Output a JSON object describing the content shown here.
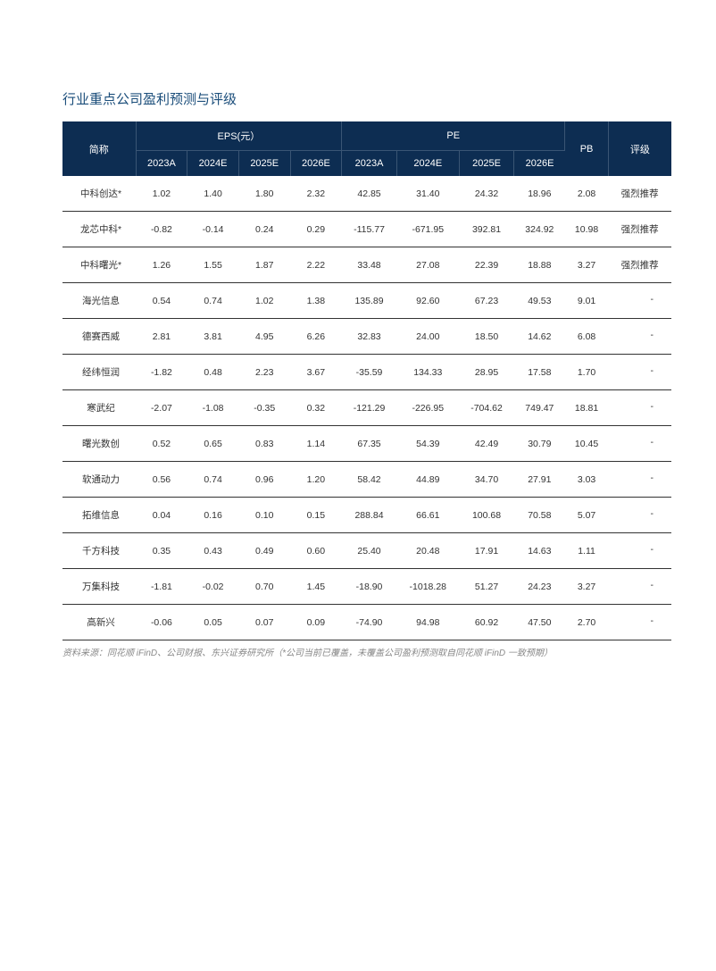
{
  "title": "行业重点公司盈利预测与评级",
  "table": {
    "header": {
      "company": "简称",
      "eps": "EPS(元）",
      "pe": "PE",
      "pb": "PB",
      "rating": "评级",
      "years": [
        "2023A",
        "2024E",
        "2025E",
        "2026E"
      ]
    },
    "rows": [
      {
        "name": "中科创达*",
        "eps": [
          "1.02",
          "1.40",
          "1.80",
          "2.32"
        ],
        "pe": [
          "42.85",
          "31.40",
          "24.32",
          "18.96"
        ],
        "pb": "2.08",
        "rating": "强烈推荐"
      },
      {
        "name": "龙芯中科*",
        "eps": [
          "-0.82",
          "-0.14",
          "0.24",
          "0.29"
        ],
        "pe": [
          "-115.77",
          "-671.95",
          "392.81",
          "324.92"
        ],
        "pb": "10.98",
        "rating": "强烈推荐"
      },
      {
        "name": "中科曙光*",
        "eps": [
          "1.26",
          "1.55",
          "1.87",
          "2.22"
        ],
        "pe": [
          "33.48",
          "27.08",
          "22.39",
          "18.88"
        ],
        "pb": "3.27",
        "rating": "强烈推荐"
      },
      {
        "name": "海光信息",
        "eps": [
          "0.54",
          "0.74",
          "1.02",
          "1.38"
        ],
        "pe": [
          "135.89",
          "92.60",
          "67.23",
          "49.53"
        ],
        "pb": "9.01",
        "rating": "-"
      },
      {
        "name": "德赛西威",
        "eps": [
          "2.81",
          "3.81",
          "4.95",
          "6.26"
        ],
        "pe": [
          "32.83",
          "24.00",
          "18.50",
          "14.62"
        ],
        "pb": "6.08",
        "rating": "-"
      },
      {
        "name": "经纬恒润",
        "eps": [
          "-1.82",
          "0.48",
          "2.23",
          "3.67"
        ],
        "pe": [
          "-35.59",
          "134.33",
          "28.95",
          "17.58"
        ],
        "pb": "1.70",
        "rating": "-"
      },
      {
        "name": "寒武纪",
        "eps": [
          "-2.07",
          "-1.08",
          "-0.35",
          "0.32"
        ],
        "pe": [
          "-121.29",
          "-226.95",
          "-704.62",
          "749.47"
        ],
        "pb": "18.81",
        "rating": "-"
      },
      {
        "name": "曙光数创",
        "eps": [
          "0.52",
          "0.65",
          "0.83",
          "1.14"
        ],
        "pe": [
          "67.35",
          "54.39",
          "42.49",
          "30.79"
        ],
        "pb": "10.45",
        "rating": "-"
      },
      {
        "name": "软通动力",
        "eps": [
          "0.56",
          "0.74",
          "0.96",
          "1.20"
        ],
        "pe": [
          "58.42",
          "44.89",
          "34.70",
          "27.91"
        ],
        "pb": "3.03",
        "rating": "-"
      },
      {
        "name": "拓维信息",
        "eps": [
          "0.04",
          "0.16",
          "0.10",
          "0.15"
        ],
        "pe": [
          "288.84",
          "66.61",
          "100.68",
          "70.58"
        ],
        "pb": "5.07",
        "rating": "-"
      },
      {
        "name": "千方科技",
        "eps": [
          "0.35",
          "0.43",
          "0.49",
          "0.60"
        ],
        "pe": [
          "25.40",
          "20.48",
          "17.91",
          "14.63"
        ],
        "pb": "1.11",
        "rating": "-"
      },
      {
        "name": "万集科技",
        "eps": [
          "-1.81",
          "-0.02",
          "0.70",
          "1.45"
        ],
        "pe": [
          "-18.90",
          "-1018.28",
          "51.27",
          "24.23"
        ],
        "pb": "3.27",
        "rating": "-"
      },
      {
        "name": "高新兴",
        "eps": [
          "-0.06",
          "0.05",
          "0.07",
          "0.09"
        ],
        "pe": [
          "-74.90",
          "94.98",
          "60.92",
          "47.50"
        ],
        "pb": "2.70",
        "rating": "-"
      }
    ]
  },
  "source_note": "资料来源：同花顺 iFinD、公司财报、东兴证券研究所（*公司当前已覆盖，未覆盖公司盈利预测取自同花顺 iFinD 一致预期）",
  "colors": {
    "title_color": "#1a4d7a",
    "header_bg": "#0d2d52",
    "header_text": "#ffffff",
    "header_border": "#3a5574",
    "cell_text": "#333333",
    "row_border": "#333333",
    "source_text": "#888888",
    "background": "#ffffff"
  },
  "typography": {
    "title_fontsize": 15,
    "header_fontsize": 11,
    "cell_fontsize": 10.5,
    "source_fontsize": 10
  }
}
